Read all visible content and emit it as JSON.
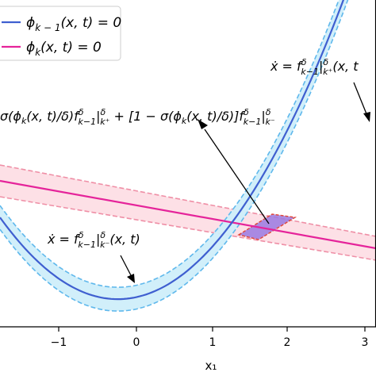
{
  "legend": {
    "items": [
      {
        "label": "ϕ_{k−1}(x, t) = 0",
        "color": "#3f5fd0"
      },
      {
        "label": "ϕ_k(x, t) = 0",
        "color": "#e5239a"
      }
    ]
  },
  "axes": {
    "xlabel": "x₁",
    "xticks": [
      "−1",
      "0",
      "1",
      "2",
      "3"
    ]
  },
  "annotations": {
    "top_right": "ẋ = f^δ_{k−1}|^δ_{k⁺}(x, t",
    "blend": "σ(ϕ_k(x, t)/δ) f^δ_{k−1}|^δ_{k⁺} + [1 − σ(ϕ_k(x, t)/δ)] f^δ_{k−1}|^δ_{k⁻}",
    "bottom": "ẋ = f^δ_{k−1}|^δ_{k⁻}(x, t)"
  },
  "colors": {
    "blue_line": "#3f5fd0",
    "blue_band": "#cfeefa",
    "blue_dash": "#5fb8ec",
    "pink_line": "#e5239a",
    "pink_band": "#fde0e6",
    "pink_dash": "#ef8fa6",
    "overlap_fill": "#9a79e0",
    "overlap_edge": "#e0463a"
  }
}
